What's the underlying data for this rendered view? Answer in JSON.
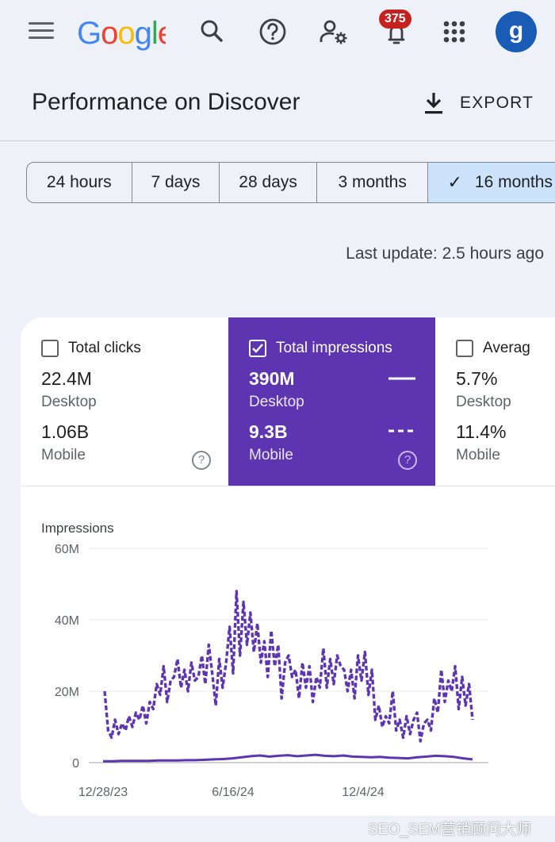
{
  "header": {
    "logo_text": "Google",
    "notification_count": "375",
    "avatar_letter": "g",
    "page_title": "Performance on Discover",
    "export_label": "EXPORT"
  },
  "date_ranges": [
    {
      "label": "24 hours",
      "selected": false
    },
    {
      "label": "7 days",
      "selected": false
    },
    {
      "label": "28 days",
      "selected": false
    },
    {
      "label": "3 months",
      "selected": false
    },
    {
      "label": "16 months",
      "selected": true
    }
  ],
  "last_update": "Last update: 2.5 hours ago",
  "metrics": [
    {
      "title": "Total clicks",
      "checked": false,
      "desktop_value": "22.4M",
      "desktop_label": "Desktop",
      "mobile_value": "1.06B",
      "mobile_label": "Mobile"
    },
    {
      "title": "Total impressions",
      "checked": true,
      "desktop_value": "390M",
      "desktop_label": "Desktop",
      "mobile_value": "9.3B",
      "mobile_label": "Mobile"
    },
    {
      "title": "Averag",
      "checked": false,
      "desktop_value": "5.7%",
      "desktop_label": "Desktop",
      "mobile_value": "11.4%",
      "mobile_label": "Mobile"
    }
  ],
  "colors": {
    "accent": "#5e35b1",
    "selected_chip": "#cde3fb",
    "brand_blue": "#1a5bb6",
    "badge": "#c5221f"
  },
  "chart_data": {
    "type": "line",
    "title": "Impressions",
    "ylim": [
      0,
      60000000
    ],
    "y_ticks": [
      "0",
      "20M",
      "40M",
      "60M"
    ],
    "x_tick_labels": [
      "12/28/23",
      "6/16/24",
      "12/4/24"
    ],
    "grid": true,
    "series": [
      {
        "name": "Mobile",
        "style": "dashed",
        "values": [
          20,
          9,
          7,
          12,
          8,
          11,
          9,
          13,
          10,
          14,
          12,
          16,
          11,
          17,
          15,
          22,
          19,
          27,
          17,
          23,
          24,
          29,
          21,
          26,
          20,
          28,
          23,
          24,
          30,
          22,
          33,
          25,
          16,
          29,
          21,
          28,
          38,
          25,
          48,
          30,
          45,
          33,
          42,
          31,
          39,
          28,
          34,
          24,
          37,
          27,
          33,
          18,
          28,
          30,
          24,
          26,
          18,
          28,
          21,
          27,
          17,
          24,
          21,
          32,
          21,
          29,
          22,
          30,
          27,
          26,
          20,
          26,
          18,
          30,
          23,
          31,
          19,
          26,
          12,
          16,
          10,
          13,
          11,
          20,
          9,
          12,
          7,
          13,
          8,
          12,
          14,
          6,
          11,
          12,
          9,
          18,
          14,
          26,
          17,
          23,
          20,
          27,
          15,
          24,
          16,
          22,
          12
        ],
        "values_unit": "M"
      },
      {
        "name": "Desktop",
        "style": "solid",
        "values": [
          0.4,
          0.4,
          0.5,
          0.5,
          0.5,
          0.5,
          0.6,
          0.6,
          0.6,
          0.7,
          0.7,
          0.8,
          0.9,
          1.0,
          1.2,
          1.5,
          1.8,
          2.0,
          1.7,
          1.9,
          2.1,
          1.8,
          2.0,
          2.2,
          1.9,
          1.8,
          2.0,
          1.7,
          1.6,
          1.5,
          1.6,
          1.4,
          1.3,
          1.2,
          1.5,
          1.7,
          1.9,
          1.8,
          1.6,
          1.2,
          0.9
        ],
        "values_unit": "M"
      }
    ]
  },
  "watermark": "SEO_SEM营销顾问大师"
}
